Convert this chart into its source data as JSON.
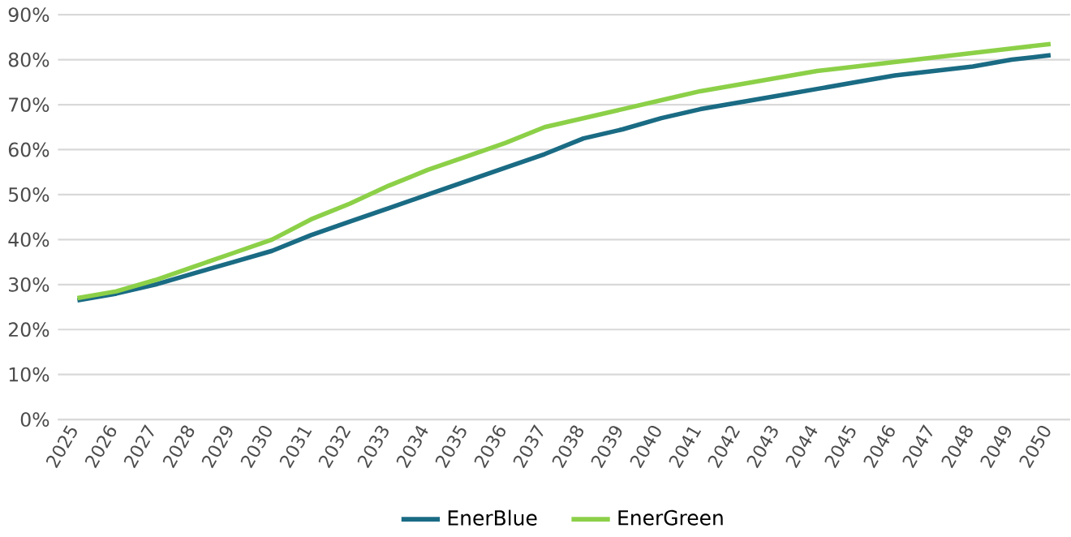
{
  "chart_data": {
    "type": "line",
    "categories": [
      "2025",
      "2026",
      "2027",
      "2028",
      "2029",
      "2030",
      "2031",
      "2032",
      "2033",
      "2034",
      "2035",
      "2036",
      "2037",
      "2038",
      "2039",
      "2040",
      "2041",
      "2042",
      "2043",
      "2044",
      "2045",
      "2046",
      "2047",
      "2048",
      "2049",
      "2050"
    ],
    "series": [
      {
        "name": "EnerBlue",
        "color": "#1a6b84",
        "values": [
          26.5,
          28,
          30,
          32.5,
          35,
          37.5,
          41,
          44,
          47,
          50,
          53,
          56,
          59,
          62.5,
          64.5,
          67,
          69,
          70.5,
          72,
          73.5,
          75,
          76.5,
          77.5,
          78.5,
          80,
          81
        ]
      },
      {
        "name": "EnerGreen",
        "color": "#8cd048",
        "values": [
          27,
          28.5,
          31,
          34,
          37,
          40,
          44.5,
          48,
          52,
          55.5,
          58.5,
          61.5,
          65,
          67,
          69,
          71,
          73,
          74.5,
          76,
          77.5,
          78.5,
          79.5,
          80.5,
          81.5,
          82.5,
          83.5
        ]
      }
    ],
    "ylim": [
      0,
      90
    ],
    "yticks": [
      {
        "value": 0,
        "label": "0%"
      },
      {
        "value": 10,
        "label": "10%"
      },
      {
        "value": 20,
        "label": "20%"
      },
      {
        "value": 30,
        "label": "30%"
      },
      {
        "value": 40,
        "label": "40%"
      },
      {
        "value": 50,
        "label": "50%"
      },
      {
        "value": 60,
        "label": "60%"
      },
      {
        "value": 70,
        "label": "70%"
      },
      {
        "value": 80,
        "label": "80%"
      },
      {
        "value": 90,
        "label": "90%"
      }
    ],
    "grid": "y",
    "legend": "bottom",
    "marker": "none",
    "line_style": "solid"
  }
}
